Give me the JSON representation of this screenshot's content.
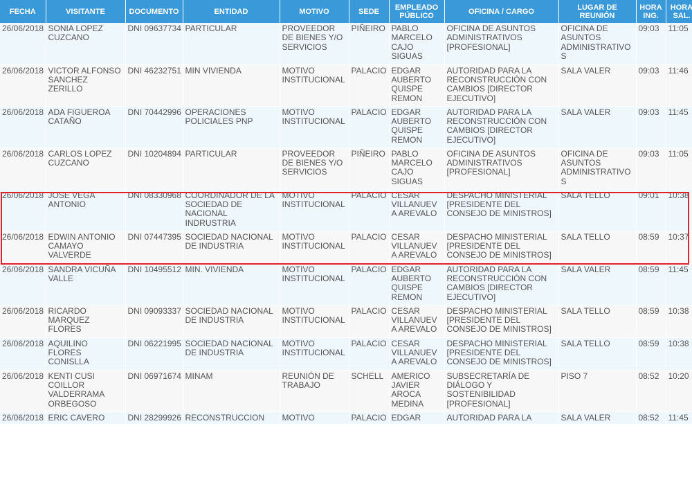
{
  "columns": [
    "FECHA",
    "VISITANTE",
    "DOCUMENTO",
    "ENTIDAD",
    "MOTIVO",
    "SEDE",
    "EMPLEADO PÚBLICO",
    "OFICINA / CARGO",
    "LUGAR DE REUNIÓN",
    "HORA ING.",
    "HORA SAL."
  ],
  "rows": [
    [
      "26/06/2018",
      "SONIA LOPEZ CUZCANO",
      "DNI 09637734",
      "PARTICULAR",
      "PROVEEDOR DE BIENES Y/O SERVICIOS",
      "PIÑEIRO",
      "PABLO MARCELO CAJO SIGUAS",
      "OFICINA DE ASUNTOS ADMINISTRATIVOS [PROFESIONAL]",
      "OFICINA DE ASUNTOS ADMINISTRATIVOS",
      "09:03",
      "11:05"
    ],
    [
      "26/06/2018",
      "VICTOR ALFONSO SANCHEZ ZERILLO",
      "DNI 46232751",
      "MIN VIVIENDA",
      "MOTIVO INSTITUCIONAL",
      "PALACIO",
      "EDGAR AUBERTO QUISPE REMON",
      "AUTORIDAD PARA LA RECONSTRUCCIÓN CON CAMBIOS [DIRECTOR EJECUTIVO]",
      "SALA VALER",
      "09:03",
      "11:46"
    ],
    [
      "26/06/2018",
      "ADA FIGUEROA CATAÑO",
      "DNI 70442996",
      "OPERACIONES POLICIALES PNP",
      "MOTIVO INSTITUCIONAL",
      "PALACIO",
      "EDGAR AUBERTO QUISPE REMON",
      "AUTORIDAD PARA LA RECONSTRUCCIÓN CON CAMBIOS [DIRECTOR EJECUTIVO]",
      "SALA VALER",
      "09:03",
      "11:45"
    ],
    [
      "26/06/2018",
      "CARLOS LOPEZ CUZCANO",
      "DNI 10204894",
      "PARTICULAR",
      "PROVEEDOR DE BIENES Y/O SERVICIOS",
      "PIÑEIRO",
      "PABLO MARCELO CAJO SIGUAS",
      "OFICINA DE ASUNTOS ADMINISTRATIVOS [PROFESIONAL]",
      "OFICINA DE ASUNTOS ADMINISTRATIVOS",
      "09:03",
      "11:05"
    ],
    [
      "26/06/2018",
      "JOSE VEGA ANTONIO",
      "DNI 08330968",
      "COORDINADOR DE LA SOCIEDAD DE NACIONAL INDRUSTRIA",
      "MOTIVO INSTITUCIONAL",
      "PALACIO",
      "CESAR VILLANUEVA AREVALO",
      "DESPACHO MINISTERIAL [PRESIDENTE DEL CONSEJO DE MINISTROS]",
      "SALA TELLO",
      "09:01",
      "10:38"
    ],
    [
      "26/06/2018",
      "EDWIN ANTONIO CAMAYO VALVERDE",
      "DNI 07447395",
      "SOCIEDAD NACIONAL DE INDUSTRIA",
      "MOTIVO INSTITUCIONAL",
      "PALACIO",
      "CESAR VILLANUEVA AREVALO",
      "DESPACHO MINISTERIAL [PRESIDENTE DEL CONSEJO DE MINISTROS]",
      "SALA TELLO",
      "08:59",
      "10:37"
    ],
    [
      "26/06/2018",
      "SANDRA VICUÑA VALLE",
      "DNI 10495512",
      "MIN. VIVIENDA",
      "MOTIVO INSTITUCIONAL",
      "PALACIO",
      "EDGAR AUBERTO QUISPE REMON",
      "AUTORIDAD PARA LA RECONSTRUCCIÓN CON CAMBIOS [DIRECTOR EJECUTIVO]",
      "SALA VALER",
      "08:59",
      "11:45"
    ],
    [
      "26/06/2018",
      "RICARDO MARQUEZ FLORES",
      "DNI 09093337",
      "SOCIEDAD NACIONAL DE INDUSTRIA",
      "MOTIVO INSTITUCIONAL",
      "PALACIO",
      "CESAR VILLANUEVA AREVALO",
      "DESPACHO MINISTERIAL [PRESIDENTE DEL CONSEJO DE MINISTROS]",
      "SALA TELLO",
      "08:59",
      "10:38"
    ],
    [
      "26/06/2018",
      "AQUILINO FLORES CONISLLA",
      "DNI 06221995",
      "SOCIEDAD NACIONAL DE INDUSTRIA",
      "MOTIVO INSTITUCIONAL",
      "PALACIO",
      "CESAR VILLANUEVA AREVALO",
      "DESPACHO MINISTERIAL [PRESIDENTE DEL CONSEJO DE MINISTROS]",
      "SALA TELLO",
      "08:59",
      "10:38"
    ],
    [
      "26/06/2018",
      "KENTI CUSI COILLOR VALDERRAMA ORBEGOSO",
      "DNI 06971674",
      "MINAM",
      "REUNIÓN DE TRABAJO",
      "SCHELL",
      "AMERICO JAVIER AROCA MEDINA",
      "SUBSECRETARÍA DE DIÁLOGO Y SOSTENIBILIDAD [PROFESIONAL]",
      "PISO 7",
      "08:52",
      "10:20"
    ],
    [
      "26/06/2018",
      "ERIC CAVERO",
      "DNI 28299926",
      "RECONSTRUCCION",
      "MOTIVO",
      "PALACIO",
      "EDGAR",
      "AUTORIDAD PARA LA",
      "SALA VALER",
      "08:52",
      "11:45"
    ]
  ],
  "highlight_color": "#e5202b",
  "header_color": "#3a9ad9"
}
